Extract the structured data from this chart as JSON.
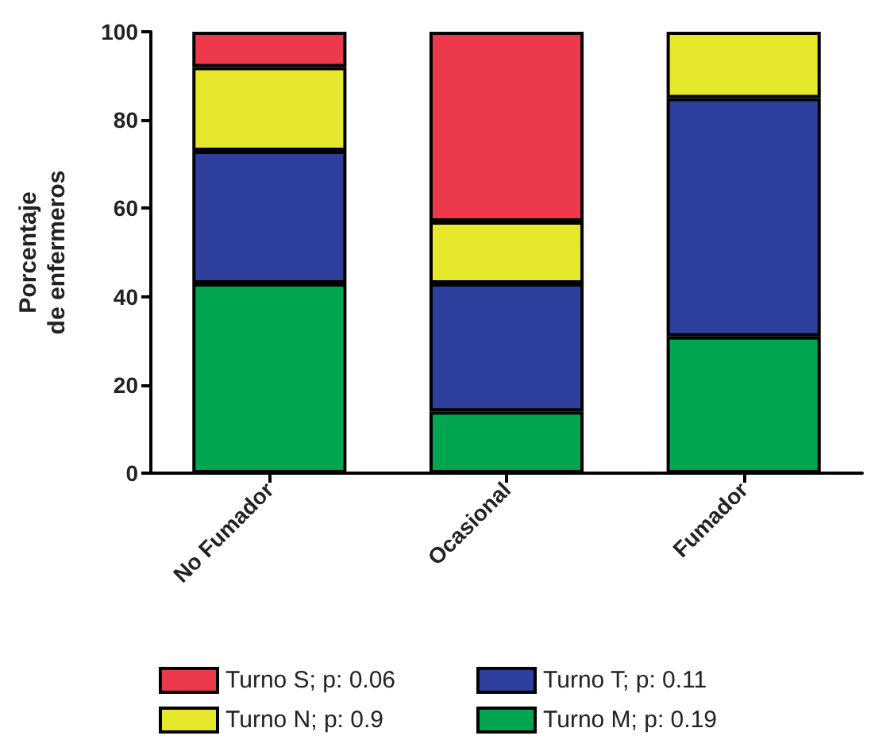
{
  "chart_data": {
    "type": "bar",
    "stacked": true,
    "ylabel": "Porcentaje\nde enfermeros",
    "categories": [
      "No Fumador",
      "Ocasional",
      "Fumador"
    ],
    "series": [
      {
        "name": "Turno M; p: 0.19",
        "color": "#00a550",
        "values": [
          43,
          14,
          31
        ]
      },
      {
        "name": "Turno T; p: 0.11",
        "color": "#2e3f9e",
        "values": [
          30,
          29,
          54
        ]
      },
      {
        "name": "Turno N; p: 0.9",
        "color": "#e6e62a",
        "values": [
          19,
          14,
          15
        ]
      },
      {
        "name": "Turno S; p: 0.06",
        "color": "#ec3a4c",
        "values": [
          8,
          43,
          0
        ]
      }
    ],
    "ylim": [
      0,
      100
    ],
    "yticks": [
      0,
      20,
      40,
      60,
      80,
      100
    ],
    "grid": false,
    "legend": "bottom"
  }
}
